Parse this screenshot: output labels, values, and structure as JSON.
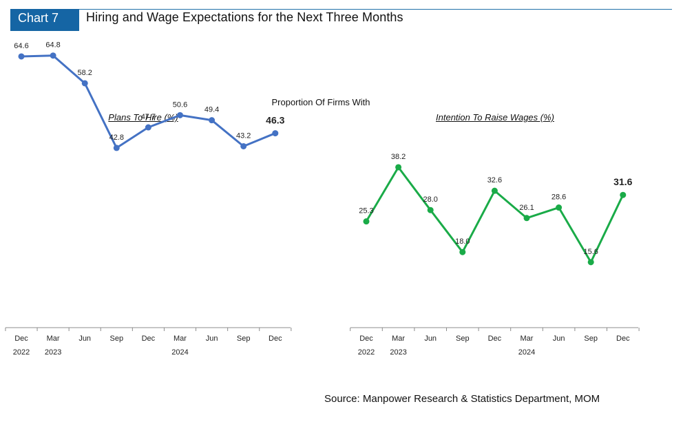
{
  "header": {
    "chart_label": "Chart 7",
    "title": "Hiring and Wage Expectations for the Next Three Months"
  },
  "subtitle": "Proportion Of Firms With",
  "source": "Source: Manpower Research & Statistics Department, MOM",
  "colors": {
    "hire_line": "#4472c4",
    "wage_line": "#1aab48",
    "label_bar": "#1565a4"
  },
  "chart_data": [
    {
      "type": "line",
      "title": "Plans To Hire (%)",
      "categories": [
        "Dec",
        "Mar",
        "Jun",
        "Sep",
        "Dec",
        "Mar",
        "Jun",
        "Sep",
        "Dec"
      ],
      "year_labels": [
        "2022",
        "2023",
        "",
        "",
        "",
        "2024",
        "",
        "",
        ""
      ],
      "series": [
        {
          "name": "Plans To Hire (%)",
          "values": [
            64.6,
            64.8,
            58.2,
            42.8,
            47.7,
            50.6,
            49.4,
            43.2,
            46.3
          ]
        }
      ],
      "ylim": [
        0,
        70
      ],
      "highlight_last": true
    },
    {
      "type": "line",
      "title": "Intention To Raise Wages (%)",
      "categories": [
        "Dec",
        "Mar",
        "Jun",
        "Sep",
        "Dec",
        "Mar",
        "Jun",
        "Sep",
        "Dec"
      ],
      "year_labels": [
        "2022",
        "2023",
        "",
        "",
        "",
        "2024",
        "",
        "",
        ""
      ],
      "series": [
        {
          "name": "Intention To Raise Wages (%)",
          "values": [
            25.3,
            38.2,
            28.0,
            18.0,
            32.6,
            26.1,
            28.6,
            15.6,
            31.6
          ]
        }
      ],
      "ylim": [
        0,
        70
      ],
      "highlight_last": true
    }
  ]
}
